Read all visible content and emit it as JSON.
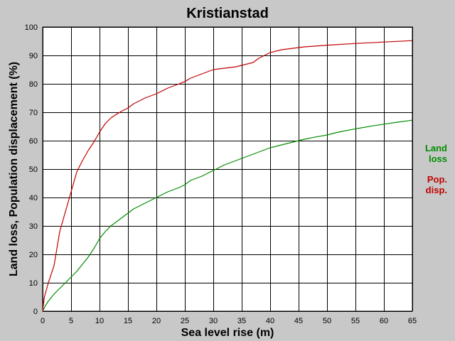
{
  "chart_data": {
    "type": "line",
    "title": "Kristianstad",
    "xlabel": "Sea level rise (m)",
    "ylabel": "Land loss, Population displacement (%)",
    "xlim": [
      0,
      65
    ],
    "ylim": [
      0,
      100
    ],
    "xticks": [
      0,
      5,
      10,
      15,
      20,
      25,
      30,
      35,
      40,
      45,
      50,
      55,
      60,
      65
    ],
    "yticks": [
      0,
      10,
      20,
      30,
      40,
      50,
      60,
      70,
      80,
      90,
      100
    ],
    "grid": true,
    "legend_position": "right",
    "series": [
      {
        "key": "land",
        "legend_lines": [
          "Land",
          "loss"
        ],
        "color": "#008c00",
        "points": [
          [
            0,
            0
          ],
          [
            0.5,
            2
          ],
          [
            1,
            3.5
          ],
          [
            2,
            6
          ],
          [
            3,
            8
          ],
          [
            4,
            10
          ],
          [
            5,
            12
          ],
          [
            6,
            14
          ],
          [
            7,
            16.5
          ],
          [
            8,
            19
          ],
          [
            9,
            22
          ],
          [
            10,
            25.5
          ],
          [
            11,
            28
          ],
          [
            12,
            30
          ],
          [
            13,
            31.5
          ],
          [
            14,
            33
          ],
          [
            15,
            34.5
          ],
          [
            16,
            36
          ],
          [
            17,
            37
          ],
          [
            18,
            38
          ],
          [
            20,
            40
          ],
          [
            22,
            42
          ],
          [
            24,
            43.5
          ],
          [
            25,
            44.5
          ],
          [
            26,
            46
          ],
          [
            28,
            47.5
          ],
          [
            30,
            49.5
          ],
          [
            32,
            51.5
          ],
          [
            34,
            53
          ],
          [
            36,
            54.5
          ],
          [
            38,
            56
          ],
          [
            40,
            57.5
          ],
          [
            42,
            58.5
          ],
          [
            44,
            59.5
          ],
          [
            46,
            60.5
          ],
          [
            48,
            61.3
          ],
          [
            50,
            62
          ],
          [
            52,
            63
          ],
          [
            54,
            63.8
          ],
          [
            56,
            64.5
          ],
          [
            58,
            65.2
          ],
          [
            60,
            65.8
          ],
          [
            62,
            66.4
          ],
          [
            65,
            67.2
          ]
        ]
      },
      {
        "key": "pop",
        "legend_lines": [
          "Pop.",
          "disp."
        ],
        "color": "#c00000",
        "points": [
          [
            0,
            0
          ],
          [
            0.3,
            5
          ],
          [
            1,
            10
          ],
          [
            2,
            16
          ],
          [
            3,
            28
          ],
          [
            4,
            35
          ],
          [
            5,
            42
          ],
          [
            6,
            49
          ],
          [
            7,
            53
          ],
          [
            8,
            56.5
          ],
          [
            9,
            59.5
          ],
          [
            10,
            63
          ],
          [
            11,
            66
          ],
          [
            12,
            68
          ],
          [
            13,
            69.3
          ],
          [
            14,
            70.5
          ],
          [
            15,
            71.5
          ],
          [
            16,
            73
          ],
          [
            17,
            74
          ],
          [
            18,
            75
          ],
          [
            20,
            76.5
          ],
          [
            22,
            78.5
          ],
          [
            24,
            80
          ],
          [
            25,
            80.8
          ],
          [
            26,
            82
          ],
          [
            28,
            83.5
          ],
          [
            30,
            85
          ],
          [
            32,
            85.5
          ],
          [
            34,
            86
          ],
          [
            36,
            87
          ],
          [
            37,
            87.5
          ],
          [
            38,
            89
          ],
          [
            40,
            91
          ],
          [
            42,
            92
          ],
          [
            44,
            92.5
          ],
          [
            46,
            93
          ],
          [
            50,
            93.6
          ],
          [
            55,
            94.2
          ],
          [
            60,
            94.7
          ],
          [
            65,
            95.2
          ]
        ]
      }
    ]
  }
}
